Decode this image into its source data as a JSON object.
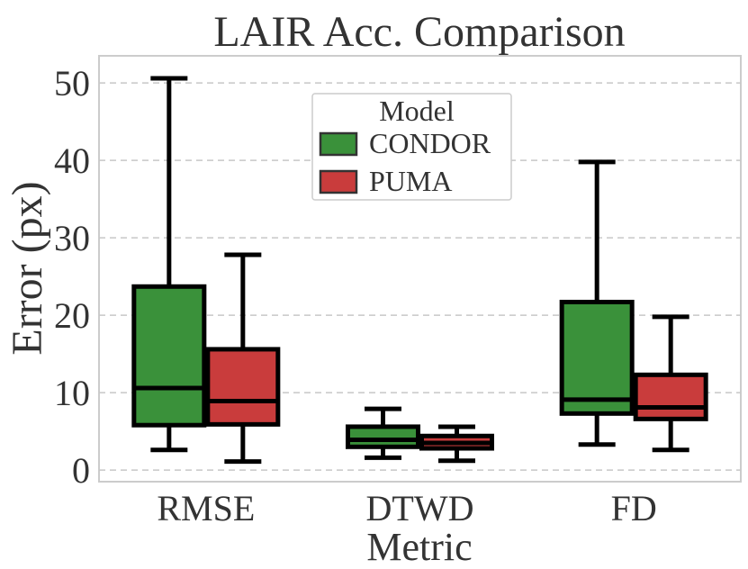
{
  "chart_data": {
    "type": "box",
    "title": "LAIR Acc. Comparison",
    "xlabel": "Metric",
    "ylabel": "Error (px)",
    "categories": [
      "RMSE",
      "DTWD",
      "FD"
    ],
    "yticks": [
      0,
      10,
      20,
      30,
      40,
      50
    ],
    "ylim": [
      -1.5,
      53.5
    ],
    "grid": "horizontal-dashed",
    "legend": {
      "title": "Model",
      "placement": "top-center",
      "entries": [
        "CONDOR",
        "PUMA"
      ]
    },
    "series": [
      {
        "name": "CONDOR",
        "color": "#3a913a",
        "boxes": [
          {
            "min": 2.6,
            "q1": 5.8,
            "median": 10.6,
            "q3": 23.7,
            "max": 50.6
          },
          {
            "min": 1.6,
            "q1": 3.0,
            "median": 3.9,
            "q3": 5.6,
            "max": 7.9
          },
          {
            "min": 3.3,
            "q1": 7.3,
            "median": 9.1,
            "q3": 21.7,
            "max": 39.8
          }
        ]
      },
      {
        "name": "PUMA",
        "color": "#c93c3c",
        "boxes": [
          {
            "min": 1.1,
            "q1": 5.9,
            "median": 8.9,
            "q3": 15.6,
            "max": 27.8
          },
          {
            "min": 1.2,
            "q1": 2.8,
            "median": 3.5,
            "q3": 4.4,
            "max": 5.6
          },
          {
            "min": 2.6,
            "q1": 6.6,
            "median": 8.1,
            "q3": 12.3,
            "max": 19.8
          }
        ]
      }
    ]
  }
}
